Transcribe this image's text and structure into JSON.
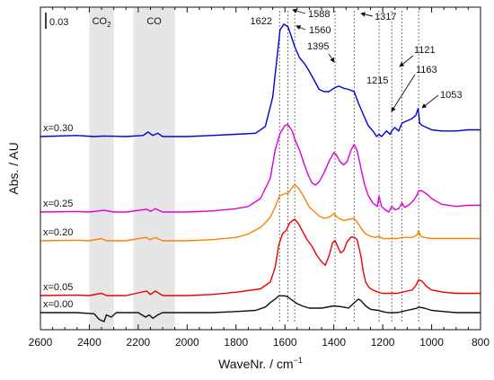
{
  "chart_data": {
    "type": "line",
    "xlabel": "WaveNr. / cm⁻¹",
    "ylabel": "Abs. / AU",
    "xlim": [
      2600,
      800
    ],
    "y_axis_ticks": "none",
    "x_ticks": [
      2600,
      2400,
      2200,
      2000,
      1800,
      1600,
      1400,
      1200,
      1000,
      800
    ],
    "grid": false,
    "legend": "none",
    "scale_bar_label": "0.03",
    "shaded_regions": [
      {
        "label": "CO₂",
        "range": [
          2400,
          2300
        ],
        "color": "#e6e6e6"
      },
      {
        "label": "CO",
        "range": [
          2220,
          2050
        ],
        "color": "#e6e6e6"
      }
    ],
    "reference_lines": [
      {
        "label": "1622",
        "x": 1622
      },
      {
        "label": "1588",
        "x": 1588
      },
      {
        "label": "1560",
        "x": 1560
      },
      {
        "label": "1395",
        "x": 1395
      },
      {
        "label": "1317",
        "x": 1317
      },
      {
        "label": "1215",
        "x": 1215
      },
      {
        "label": "1163",
        "x": 1163
      },
      {
        "label": "1121",
        "x": 1121
      },
      {
        "label": "1053",
        "x": 1053
      }
    ],
    "series": [
      {
        "name": "x=0.30",
        "color": "#0000dd",
        "points": [
          [
            2600,
            0.0
          ],
          [
            2450,
            0.001
          ],
          [
            2380,
            0.0
          ],
          [
            2340,
            0.0005
          ],
          [
            2250,
            0.0
          ],
          [
            2180,
            0.001
          ],
          [
            2160,
            0.004
          ],
          [
            2140,
            0.001
          ],
          [
            2120,
            0.003
          ],
          [
            2100,
            0.0
          ],
          [
            2000,
            0.0
          ],
          [
            1900,
            0.001
          ],
          [
            1800,
            0.002
          ],
          [
            1720,
            0.003
          ],
          [
            1680,
            0.009
          ],
          [
            1650,
            0.035
          ],
          [
            1630,
            0.075
          ],
          [
            1620,
            0.095
          ],
          [
            1605,
            0.1
          ],
          [
            1588,
            0.098
          ],
          [
            1575,
            0.09
          ],
          [
            1560,
            0.08
          ],
          [
            1540,
            0.07
          ],
          [
            1520,
            0.065
          ],
          [
            1500,
            0.058
          ],
          [
            1480,
            0.05
          ],
          [
            1460,
            0.042
          ],
          [
            1440,
            0.04
          ],
          [
            1420,
            0.04
          ],
          [
            1400,
            0.043
          ],
          [
            1380,
            0.045
          ],
          [
            1360,
            0.043
          ],
          [
            1340,
            0.042
          ],
          [
            1317,
            0.04
          ],
          [
            1300,
            0.03
          ],
          [
            1280,
            0.02
          ],
          [
            1260,
            0.01
          ],
          [
            1240,
            0.005
          ],
          [
            1225,
            0.0
          ],
          [
            1215,
            0.002
          ],
          [
            1205,
            0.0
          ],
          [
            1185,
            0.005
          ],
          [
            1170,
            0.002
          ],
          [
            1160,
            0.006
          ],
          [
            1150,
            0.008
          ],
          [
            1135,
            0.005
          ],
          [
            1121,
            0.012
          ],
          [
            1100,
            0.014
          ],
          [
            1080,
            0.016
          ],
          [
            1065,
            0.019
          ],
          [
            1055,
            0.025
          ],
          [
            1049,
            0.012
          ],
          [
            1040,
            0.01
          ],
          [
            1020,
            0.008
          ],
          [
            1000,
            0.006
          ],
          [
            960,
            0.005
          ],
          [
            900,
            0.005
          ],
          [
            850,
            0.006
          ],
          [
            800,
            0.006
          ]
        ]
      },
      {
        "name": "x=0.25",
        "color": "#dd00dd",
        "points": [
          [
            2600,
            0.0
          ],
          [
            2450,
            0.0005
          ],
          [
            2400,
            0.0
          ],
          [
            2340,
            0.0015
          ],
          [
            2300,
            0.0
          ],
          [
            2250,
            0.0
          ],
          [
            2165,
            0.0025
          ],
          [
            2150,
            0.0005
          ],
          [
            2130,
            0.003
          ],
          [
            2100,
            0.0
          ],
          [
            2000,
            0.0
          ],
          [
            1900,
            0.001
          ],
          [
            1800,
            0.003
          ],
          [
            1750,
            0.005
          ],
          [
            1700,
            0.012
          ],
          [
            1660,
            0.03
          ],
          [
            1640,
            0.055
          ],
          [
            1620,
            0.07
          ],
          [
            1600,
            0.077
          ],
          [
            1588,
            0.078
          ],
          [
            1570,
            0.072
          ],
          [
            1560,
            0.065
          ],
          [
            1540,
            0.055
          ],
          [
            1520,
            0.042
          ],
          [
            1505,
            0.033
          ],
          [
            1490,
            0.026
          ],
          [
            1475,
            0.024
          ],
          [
            1460,
            0.027
          ],
          [
            1440,
            0.035
          ],
          [
            1420,
            0.045
          ],
          [
            1400,
            0.053
          ],
          [
            1390,
            0.051
          ],
          [
            1375,
            0.045
          ],
          [
            1360,
            0.042
          ],
          [
            1345,
            0.045
          ],
          [
            1330,
            0.055
          ],
          [
            1317,
            0.06
          ],
          [
            1305,
            0.055
          ],
          [
            1290,
            0.04
          ],
          [
            1275,
            0.025
          ],
          [
            1260,
            0.015
          ],
          [
            1240,
            0.008
          ],
          [
            1222,
            0.005
          ],
          [
            1215,
            0.014
          ],
          [
            1205,
            0.005
          ],
          [
            1190,
            0.002
          ],
          [
            1175,
            0.0
          ],
          [
            1163,
            0.005
          ],
          [
            1150,
            0.002
          ],
          [
            1135,
            0.003
          ],
          [
            1121,
            0.008
          ],
          [
            1110,
            0.004
          ],
          [
            1090,
            0.007
          ],
          [
            1075,
            0.01
          ],
          [
            1060,
            0.015
          ],
          [
            1053,
            0.019
          ],
          [
            1040,
            0.019
          ],
          [
            1020,
            0.016
          ],
          [
            1000,
            0.012
          ],
          [
            960,
            0.007
          ],
          [
            900,
            0.005
          ],
          [
            850,
            0.006
          ],
          [
            800,
            0.006
          ]
        ]
      },
      {
        "name": "x=0.20",
        "color": "#ff8000",
        "points": [
          [
            2600,
            0.0
          ],
          [
            2450,
            0.0005
          ],
          [
            2400,
            0.0
          ],
          [
            2350,
            0.002
          ],
          [
            2330,
            0.0
          ],
          [
            2250,
            0.0
          ],
          [
            2170,
            0.003
          ],
          [
            2150,
            0.001
          ],
          [
            2130,
            0.003
          ],
          [
            2100,
            0.0
          ],
          [
            2000,
            0.0
          ],
          [
            1900,
            0.001
          ],
          [
            1800,
            0.003
          ],
          [
            1750,
            0.006
          ],
          [
            1700,
            0.012
          ],
          [
            1680,
            0.016
          ],
          [
            1660,
            0.021
          ],
          [
            1640,
            0.03
          ],
          [
            1622,
            0.04
          ],
          [
            1600,
            0.042
          ],
          [
            1588,
            0.042
          ],
          [
            1575,
            0.046
          ],
          [
            1560,
            0.05
          ],
          [
            1545,
            0.047
          ],
          [
            1530,
            0.042
          ],
          [
            1515,
            0.036
          ],
          [
            1500,
            0.03
          ],
          [
            1480,
            0.026
          ],
          [
            1460,
            0.022
          ],
          [
            1440,
            0.02
          ],
          [
            1420,
            0.021
          ],
          [
            1400,
            0.024
          ],
          [
            1380,
            0.02
          ],
          [
            1360,
            0.018
          ],
          [
            1340,
            0.019
          ],
          [
            1317,
            0.02
          ],
          [
            1300,
            0.015
          ],
          [
            1285,
            0.01
          ],
          [
            1270,
            0.006
          ],
          [
            1250,
            0.004
          ],
          [
            1230,
            0.003
          ],
          [
            1215,
            0.004
          ],
          [
            1200,
            0.002
          ],
          [
            1180,
            0.002
          ],
          [
            1160,
            0.002
          ],
          [
            1140,
            0.002
          ],
          [
            1121,
            0.003
          ],
          [
            1100,
            0.003
          ],
          [
            1080,
            0.003
          ],
          [
            1060,
            0.005
          ],
          [
            1053,
            0.009
          ],
          [
            1045,
            0.004
          ],
          [
            1030,
            0.003
          ],
          [
            1000,
            0.002
          ],
          [
            950,
            0.002
          ],
          [
            900,
            0.002
          ],
          [
            850,
            0.002
          ],
          [
            800,
            0.002
          ]
        ]
      },
      {
        "name": "x=0.05",
        "color": "#ee0000",
        "points": [
          [
            2600,
            0.0
          ],
          [
            2450,
            0.0005
          ],
          [
            2400,
            0.0
          ],
          [
            2350,
            0.002
          ],
          [
            2330,
            0.0
          ],
          [
            2250,
            0.0
          ],
          [
            2165,
            0.004
          ],
          [
            2150,
            0.001
          ],
          [
            2130,
            0.004
          ],
          [
            2100,
            0.0
          ],
          [
            2000,
            0.0
          ],
          [
            1900,
            0.001
          ],
          [
            1800,
            0.003
          ],
          [
            1700,
            0.006
          ],
          [
            1660,
            0.012
          ],
          [
            1640,
            0.025
          ],
          [
            1625,
            0.045
          ],
          [
            1610,
            0.055
          ],
          [
            1595,
            0.058
          ],
          [
            1580,
            0.065
          ],
          [
            1560,
            0.068
          ],
          [
            1545,
            0.064
          ],
          [
            1530,
            0.058
          ],
          [
            1510,
            0.05
          ],
          [
            1490,
            0.044
          ],
          [
            1470,
            0.036
          ],
          [
            1450,
            0.03
          ],
          [
            1435,
            0.027
          ],
          [
            1420,
            0.035
          ],
          [
            1405,
            0.047
          ],
          [
            1395,
            0.049
          ],
          [
            1385,
            0.044
          ],
          [
            1372,
            0.038
          ],
          [
            1360,
            0.04
          ],
          [
            1345,
            0.048
          ],
          [
            1330,
            0.052
          ],
          [
            1317,
            0.052
          ],
          [
            1305,
            0.05
          ],
          [
            1290,
            0.036
          ],
          [
            1280,
            0.022
          ],
          [
            1270,
            0.012
          ],
          [
            1255,
            0.007
          ],
          [
            1240,
            0.005
          ],
          [
            1220,
            0.003
          ],
          [
            1200,
            0.002
          ],
          [
            1180,
            0.002
          ],
          [
            1160,
            0.002
          ],
          [
            1140,
            0.002
          ],
          [
            1121,
            0.003
          ],
          [
            1100,
            0.004
          ],
          [
            1080,
            0.005
          ],
          [
            1065,
            0.009
          ],
          [
            1053,
            0.014
          ],
          [
            1040,
            0.013
          ],
          [
            1020,
            0.008
          ],
          [
            1000,
            0.005
          ],
          [
            950,
            0.003
          ],
          [
            900,
            0.002
          ],
          [
            850,
            0.002
          ],
          [
            800,
            0.002
          ]
        ]
      },
      {
        "name": "x=0.00",
        "color": "#111111",
        "points": [
          [
            2600,
            0.0
          ],
          [
            2450,
            0.0
          ],
          [
            2380,
            -0.001
          ],
          [
            2360,
            -0.006
          ],
          [
            2340,
            -0.008
          ],
          [
            2330,
            -0.002
          ],
          [
            2310,
            -0.004
          ],
          [
            2290,
            0.0
          ],
          [
            2200,
            0.0
          ],
          [
            2170,
            -0.004
          ],
          [
            2155,
            -0.002
          ],
          [
            2140,
            -0.005
          ],
          [
            2120,
            -0.002
          ],
          [
            2100,
            0.0
          ],
          [
            2000,
            0.0
          ],
          [
            1900,
            0.0
          ],
          [
            1800,
            0.001
          ],
          [
            1720,
            0.002
          ],
          [
            1680,
            0.005
          ],
          [
            1660,
            0.009
          ],
          [
            1640,
            0.012
          ],
          [
            1625,
            0.015
          ],
          [
            1600,
            0.015
          ],
          [
            1588,
            0.014
          ],
          [
            1570,
            0.011
          ],
          [
            1550,
            0.008
          ],
          [
            1530,
            0.006
          ],
          [
            1500,
            0.004
          ],
          [
            1450,
            0.004
          ],
          [
            1400,
            0.006
          ],
          [
            1360,
            0.005
          ],
          [
            1340,
            0.004
          ],
          [
            1320,
            0.008
          ],
          [
            1300,
            0.012
          ],
          [
            1290,
            0.011
          ],
          [
            1270,
            0.006
          ],
          [
            1250,
            0.003
          ],
          [
            1220,
            0.002
          ],
          [
            1200,
            0.001
          ],
          [
            1180,
            0.0
          ],
          [
            1160,
            0.0
          ],
          [
            1140,
            0.0
          ],
          [
            1121,
            0.001
          ],
          [
            1100,
            0.002
          ],
          [
            1080,
            0.003
          ],
          [
            1060,
            0.004
          ],
          [
            1053,
            0.005
          ],
          [
            1030,
            0.004
          ],
          [
            1000,
            0.002
          ],
          [
            950,
            0.001
          ],
          [
            900,
            0.0
          ],
          [
            850,
            0.0
          ],
          [
            800,
            0.0
          ]
        ]
      }
    ]
  }
}
